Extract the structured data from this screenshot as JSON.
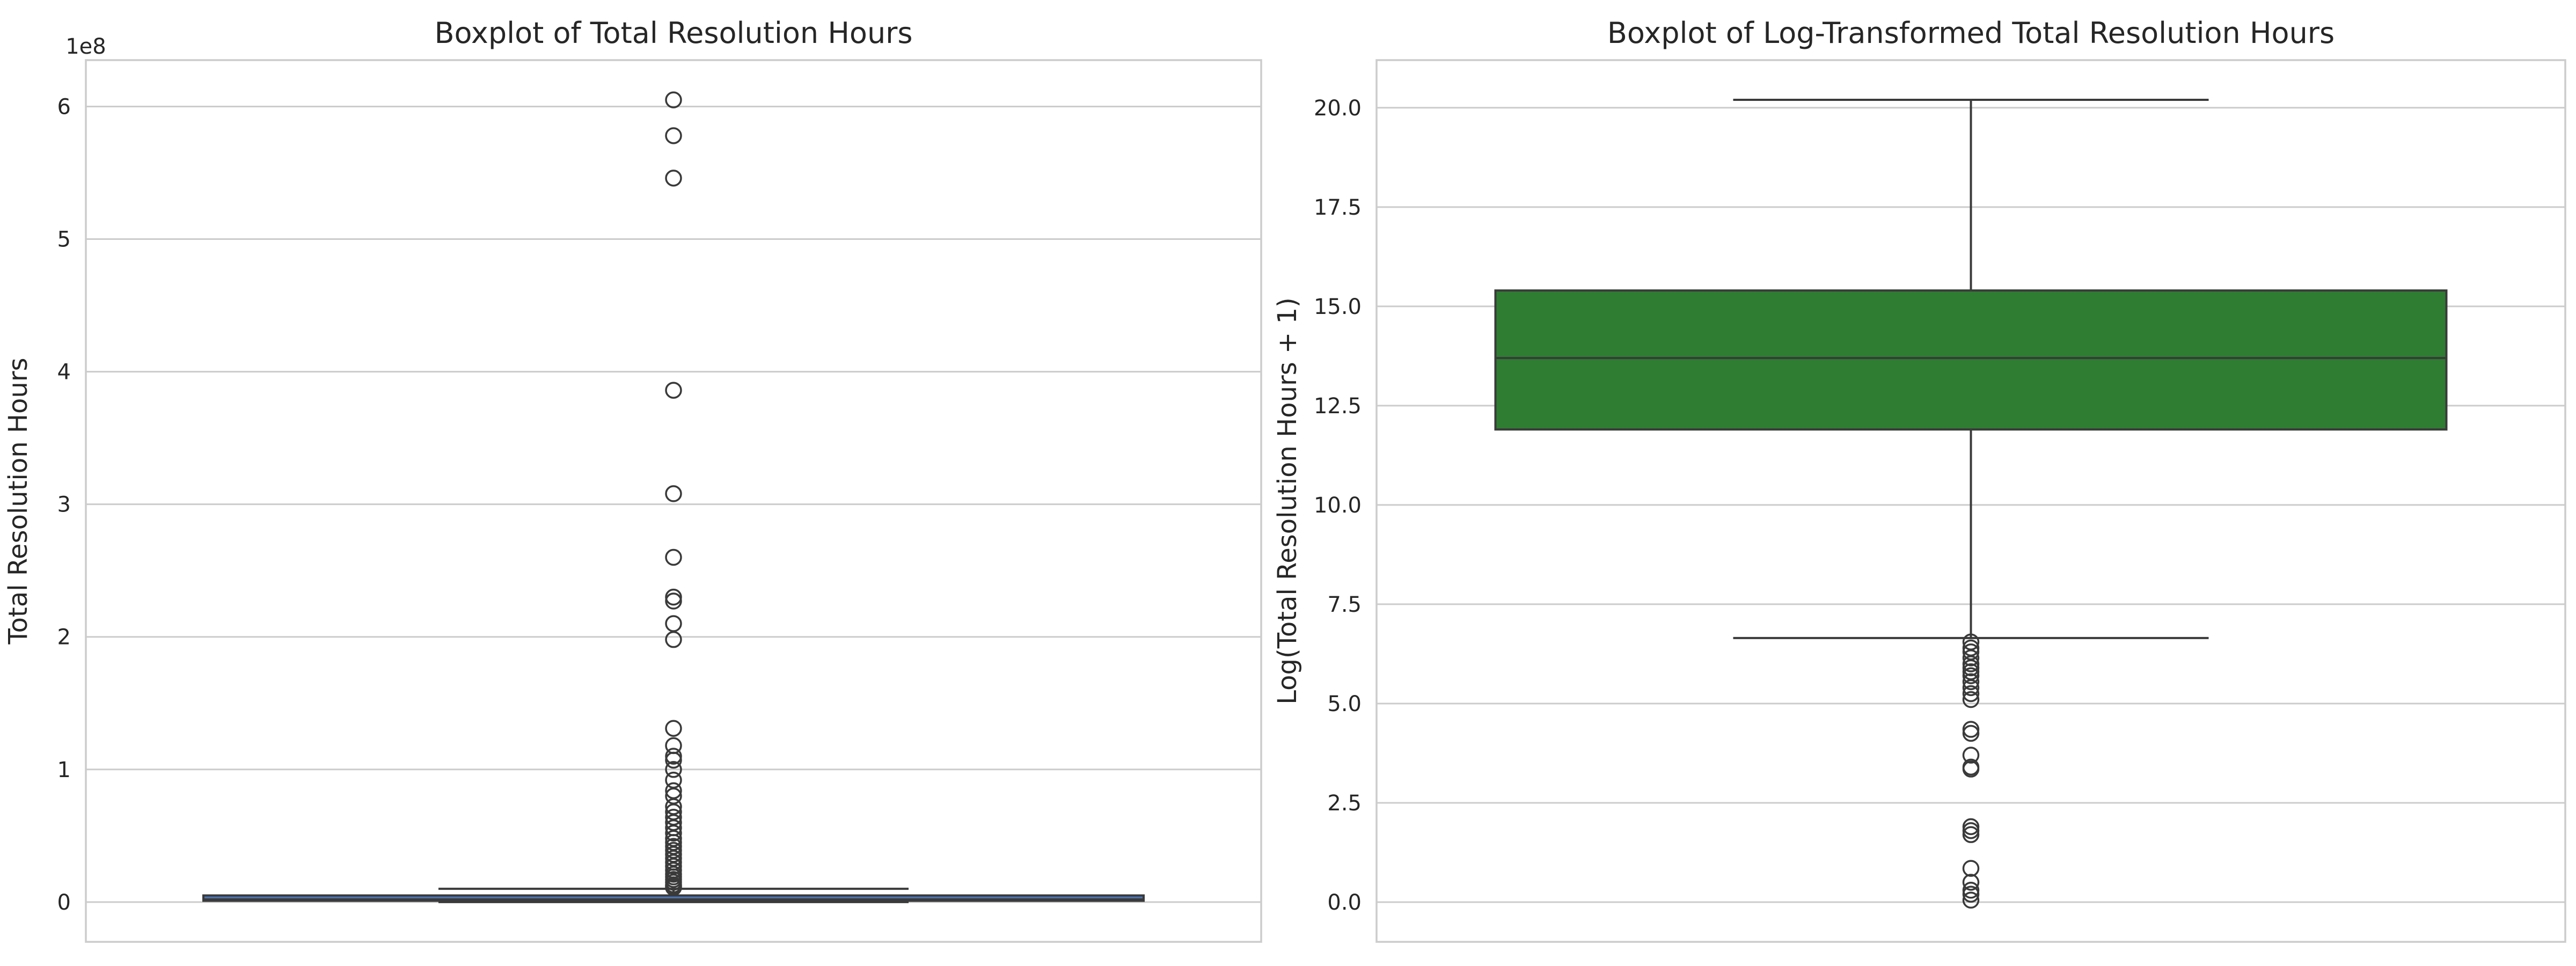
{
  "chart_data": [
    {
      "type": "boxplot",
      "title": "Boxplot of Total Resolution Hours",
      "xlabel": "",
      "ylabel": "Total Resolution Hours",
      "y_offset_label": "1e8",
      "ylim": [
        -30000000.0,
        635000000.0
      ],
      "yticks": [
        0,
        100000000.0,
        200000000.0,
        300000000.0,
        400000000.0,
        500000000.0,
        600000000.0
      ],
      "ytick_labels": [
        "0",
        "1",
        "2",
        "3",
        "4",
        "5",
        "6"
      ],
      "grid": true,
      "box_color": "#4c72b0",
      "box": {
        "whisker_low": 0,
        "q1": 1000000.0,
        "median": 2000000.0,
        "q3": 5000000.0,
        "whisker_high": 10000000.0
      },
      "fliers": [
        605000000.0,
        578000000.0,
        546000000.0,
        386000000.0,
        308000000.0,
        260000000.0,
        230000000.0,
        227000000.0,
        210000000.0,
        198000000.0,
        131000000.0,
        118000000.0,
        110000000.0,
        107000000.0,
        100000000.0,
        92000000.0,
        84000000.0,
        80000000.0,
        72000000.0,
        68000000.0,
        64000000.0,
        60000000.0,
        56000000.0,
        52000000.0,
        48000000.0,
        45000000.0,
        42000000.0,
        39000000.0,
        36000000.0,
        33000000.0,
        30000000.0,
        27000000.0,
        24000000.0,
        21000000.0,
        19000000.0,
        17000000.0,
        15000000.0,
        13000000.0,
        12000000.0,
        11000000.0
      ]
    },
    {
      "type": "boxplot",
      "title": "Boxplot of Log-Transformed Total Resolution Hours",
      "xlabel": "",
      "ylabel": "Log(Total Resolution Hours + 1)",
      "y_offset_label": "",
      "ylim": [
        -1.0,
        21.2
      ],
      "yticks": [
        0,
        2.5,
        5,
        7.5,
        10,
        12.5,
        15,
        17.5,
        20
      ],
      "ytick_labels": [
        "0.0",
        "2.5",
        "5.0",
        "7.5",
        "10.0",
        "12.5",
        "15.0",
        "17.5",
        "20.0"
      ],
      "grid": true,
      "box_color": "#2e7d32",
      "box": {
        "whisker_low": 6.65,
        "q1": 11.9,
        "median": 13.7,
        "q3": 15.4,
        "whisker_high": 20.2
      },
      "fliers": [
        6.55,
        6.4,
        6.3,
        6.15,
        6.0,
        5.9,
        5.8,
        5.7,
        5.55,
        5.4,
        5.25,
        5.1,
        4.35,
        4.25,
        3.7,
        3.4,
        3.35,
        1.9,
        1.8,
        1.7,
        0.85,
        0.5,
        0.3,
        0.2,
        0.05
      ]
    }
  ]
}
